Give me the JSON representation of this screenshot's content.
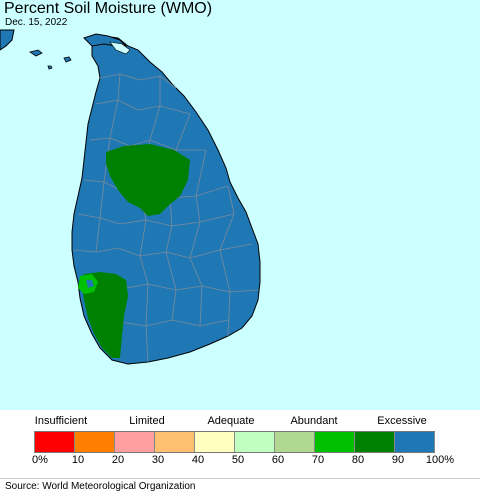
{
  "header": {
    "title": "Percent Soil Moisture (WMO)",
    "date": "Dec. 15, 2022"
  },
  "map": {
    "ocean_color": "#ccffff",
    "land_color": "#1f78b4",
    "region_80_90_color": "#008000",
    "region_70_80_color": "#00c000"
  },
  "legend": {
    "categories": [
      {
        "label": "Insufficient"
      },
      {
        "label": "Limited"
      },
      {
        "label": "Adequate"
      },
      {
        "label": "Abundant"
      },
      {
        "label": "Excessive"
      }
    ],
    "colors": [
      "#ff0000",
      "#ff7f00",
      "#ff9f9f",
      "#ffbf70",
      "#ffffc0",
      "#c0ffc0",
      "#b0d890",
      "#00c000",
      "#008000",
      "#1f78b4"
    ],
    "ticks": [
      "0%",
      "10",
      "20",
      "30",
      "40",
      "50",
      "60",
      "70",
      "80",
      "90",
      "100%"
    ]
  },
  "footer": {
    "source": "Source: World Meteorological Organization"
  }
}
